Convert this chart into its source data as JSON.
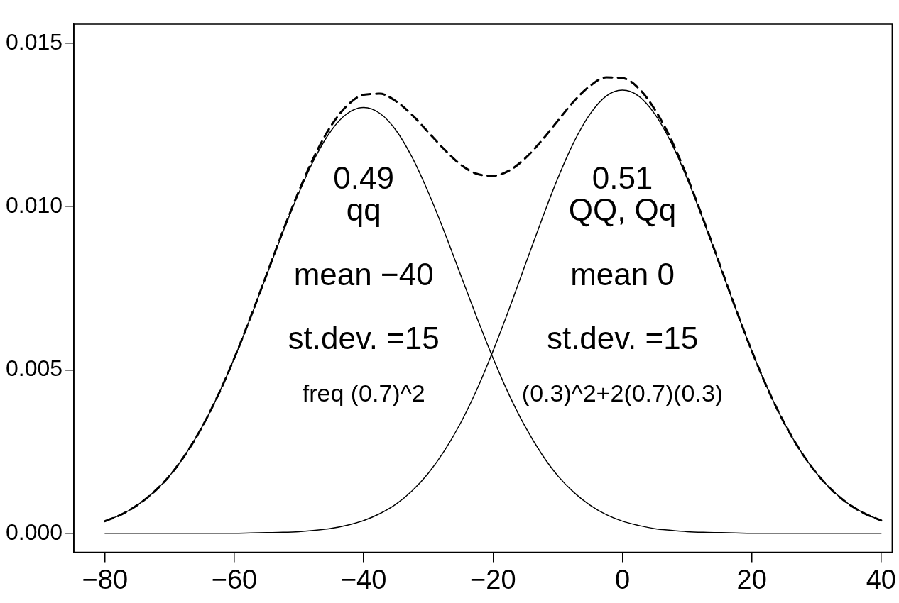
{
  "chart_data": {
    "type": "line",
    "marker": "none",
    "grid": false,
    "legend": false,
    "x": [
      -80,
      -77.5,
      -75,
      -72.5,
      -70,
      -67.5,
      -65,
      -62.5,
      -60,
      -57.5,
      -55,
      -52.5,
      -50,
      -47.5,
      -45,
      -42.5,
      -40,
      -37.5,
      -35,
      -32.5,
      -30,
      -27.5,
      -25,
      -22.5,
      -20,
      -17.5,
      -15,
      -12.5,
      -10,
      -7.5,
      -5,
      -2.5,
      0,
      2.5,
      5,
      7.5,
      10,
      12.5,
      15,
      17.5,
      20,
      22.5,
      25,
      27.5,
      30,
      32.5,
      35,
      37.5,
      40
    ],
    "xlim": [
      -84.8,
      41.7
    ],
    "ylim": [
      -0.00058,
      0.01558
    ],
    "xticks": [
      {
        "value": -80,
        "label": "−80"
      },
      {
        "value": -60,
        "label": "−60"
      },
      {
        "value": -40,
        "label": "−40"
      },
      {
        "value": -20,
        "label": "−20"
      },
      {
        "value": 0,
        "label": "0"
      },
      {
        "value": 20,
        "label": "20"
      },
      {
        "value": 40,
        "label": "40"
      }
    ],
    "yticks": [
      {
        "value": 0,
        "label": "0.000"
      },
      {
        "value": 0.005,
        "label": "0.005"
      },
      {
        "value": 0.01,
        "label": "0.010"
      },
      {
        "value": 0.015,
        "label": "0.015"
      }
    ],
    "series": [
      {
        "color": "#000000",
        "line_style": "solid",
        "values": [
          0.00037,
          0.00057,
          0.00086,
          0.00125,
          0.00176,
          0.00243,
          0.00325,
          0.00423,
          0.00536,
          0.0066,
          0.0079,
          0.00921,
          0.01043,
          0.0115,
          0.01233,
          0.01285,
          0.01303,
          0.01285,
          0.01233,
          0.0115,
          0.01043,
          0.00921,
          0.0079,
          0.0066,
          0.00536,
          0.00423,
          0.00325,
          0.00243,
          0.00176,
          0.00125,
          0.00086,
          0.00057,
          0.00037,
          0.00024,
          0.00014,
          9e-05,
          5e-05,
          3e-05,
          2e-05,
          1e-05,
          0,
          0,
          0,
          0,
          0,
          0,
          0,
          0,
          0
        ]
      },
      {
        "color": "#000000",
        "line_style": "solid",
        "values": [
          0,
          0,
          0,
          0,
          0,
          0,
          0,
          0,
          0,
          1e-05,
          2e-05,
          3e-05,
          5e-05,
          9e-05,
          0.00015,
          0.00025,
          0.00039,
          0.0006,
          0.00089,
          0.0013,
          0.00184,
          0.00253,
          0.00338,
          0.0044,
          0.00558,
          0.00687,
          0.00823,
          0.00958,
          0.01086,
          0.01197,
          0.01283,
          0.01338,
          0.01356,
          0.01338,
          0.01283,
          0.01197,
          0.01086,
          0.00958,
          0.00823,
          0.00687,
          0.00558,
          0.0044,
          0.00338,
          0.00253,
          0.00184,
          0.0013,
          0.00089,
          0.0006,
          0.00039
        ]
      },
      {
        "color": "#000000",
        "line_style": "dashed",
        "values": [
          0.00037,
          0.00057,
          0.00086,
          0.00125,
          0.00176,
          0.00243,
          0.00325,
          0.00423,
          0.00536,
          0.00661,
          0.00792,
          0.00924,
          0.01048,
          0.01159,
          0.01248,
          0.0131,
          0.01342,
          0.01345,
          0.01322,
          0.0128,
          0.01227,
          0.01174,
          0.01128,
          0.011,
          0.01094,
          0.0111,
          0.01148,
          0.01201,
          0.01262,
          0.01322,
          0.01369,
          0.01395,
          0.01393,
          0.01362,
          0.01297,
          0.01206,
          0.01091,
          0.00961,
          0.00825,
          0.00688,
          0.00558,
          0.0044,
          0.00338,
          0.00253,
          0.00184,
          0.0013,
          0.00089,
          0.0006,
          0.00039
        ]
      }
    ],
    "annotations": [
      "0.49",
      "qq",
      "mean −40",
      "st.dev. =15",
      "freq (0.7)^2",
      "0.51",
      "QQ, Qq",
      "mean 0",
      "st.dev. =15",
      "(0.3)^2+2(0.7)(0.3)"
    ]
  }
}
